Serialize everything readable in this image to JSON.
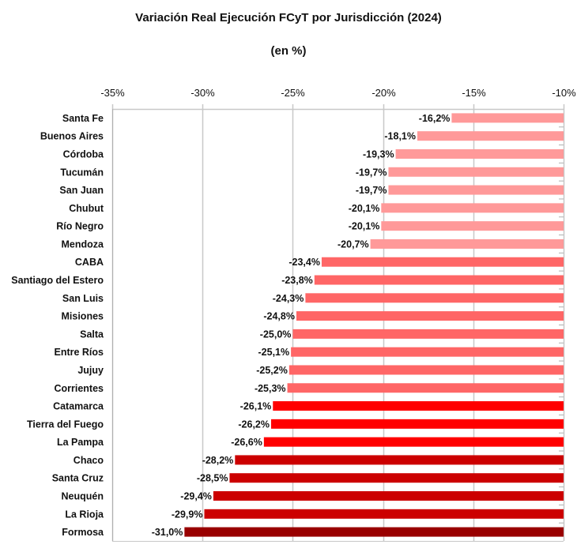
{
  "chart_data": {
    "type": "bar",
    "orientation": "horizontal",
    "title": "Variación Real Ejecución FCyT por Jurisdicción (2024)",
    "subtitle": "(en %)",
    "xlabel": "",
    "ylabel": "",
    "xlim": [
      -35,
      -10
    ],
    "x_ticks": [
      -35,
      -30,
      -25,
      -20,
      -15,
      -10
    ],
    "x_tick_labels": [
      "-35%",
      "-30%",
      "-25%",
      "-20%",
      "-15%",
      "-10%"
    ],
    "x_axis_position": "top",
    "grid": true,
    "legend": "none",
    "categories": [
      "Santa Fe",
      "Buenos Aires",
      "Córdoba",
      "Tucumán",
      "San Juan",
      "Chubut",
      "Río Negro",
      "Mendoza",
      "CABA",
      "Santiago del Estero",
      "San Luis",
      "Misiones",
      "Salta",
      "Entre Ríos",
      "Jujuy",
      "Corrientes",
      "Catamarca",
      "Tierra del Fuego",
      "La Pampa",
      "Chaco",
      "Santa Cruz",
      "Neuquén",
      "La Rioja",
      "Formosa"
    ],
    "values": [
      -16.2,
      -18.1,
      -19.3,
      -19.7,
      -19.7,
      -20.1,
      -20.1,
      -20.7,
      -23.4,
      -23.8,
      -24.3,
      -24.8,
      -25.0,
      -25.1,
      -25.2,
      -25.3,
      -26.1,
      -26.2,
      -26.6,
      -28.2,
      -28.5,
      -29.4,
      -29.9,
      -31.0
    ],
    "value_labels": [
      "-16,2%",
      "-18,1%",
      "-19,3%",
      "-19,7%",
      "-19,7%",
      "-20,1%",
      "-20,1%",
      "-20,7%",
      "-23,4%",
      "-23,8%",
      "-24,3%",
      "-24,8%",
      "-25,0%",
      "-25,1%",
      "-25,2%",
      "-25,3%",
      "-26,1%",
      "-26,2%",
      "-26,6%",
      "-28,2%",
      "-28,5%",
      "-29,4%",
      "-29,9%",
      "-31,0%"
    ],
    "color_groups": [
      {
        "name": "light",
        "color": "#ff9999",
        "count": 8
      },
      {
        "name": "medium",
        "color": "#ff6666",
        "count": 8
      },
      {
        "name": "bright",
        "color": "#ff0000",
        "count": 3
      },
      {
        "name": "dark",
        "color": "#cc0000",
        "count": 4
      },
      {
        "name": "darkest",
        "color": "#990000",
        "count": 1
      }
    ],
    "colors": {
      "grid": "#c8c8c8",
      "axis": "#b0b0b0"
    }
  }
}
